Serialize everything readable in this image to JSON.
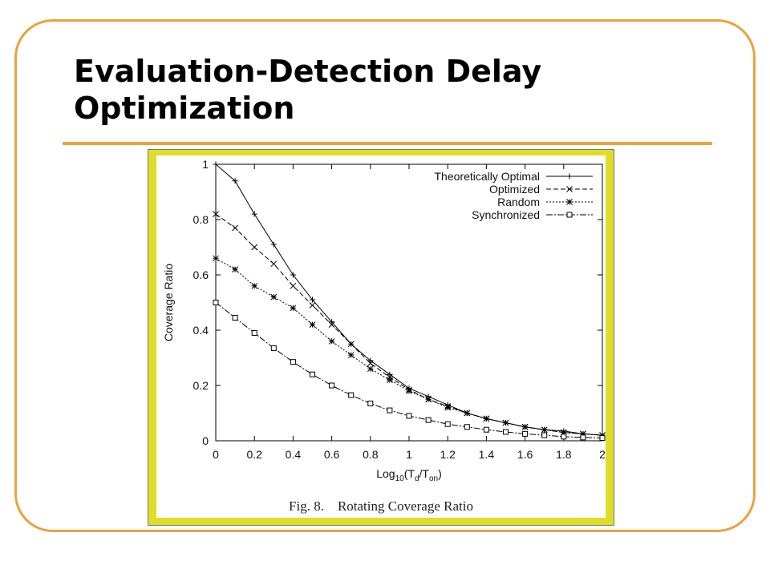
{
  "slide": {
    "title_line1": "Evaluation-Detection Delay",
    "title_line2": "Optimization",
    "frame_color": "#e8a33c",
    "figure_bg_color": "#dede2a"
  },
  "figure": {
    "caption_label": "Fig. 8.",
    "caption_text": "Rotating Coverage Ratio"
  },
  "chart_data": {
    "type": "line",
    "title": "",
    "xlabel": "Log10(Td/Ton)",
    "ylabel": "Coverage Ratio",
    "xlim": [
      0,
      2
    ],
    "ylim": [
      0,
      1
    ],
    "xticks": [
      0,
      0.2,
      0.4,
      0.6,
      0.8,
      1,
      1.2,
      1.4,
      1.6,
      1.8,
      2
    ],
    "xtick_labels": [
      "0",
      "0.2",
      "0.4",
      "0.6",
      "0.8",
      "1",
      "1.2",
      "1.4",
      "1.6",
      "1.8",
      "2"
    ],
    "yticks": [
      0,
      0.2,
      0.4,
      0.6,
      0.8,
      1
    ],
    "ytick_labels": [
      "0",
      "0.2",
      "0.4",
      "0.6",
      "0.8",
      "1"
    ],
    "grid": false,
    "legend_position": "top-right",
    "x": [
      0,
      0.1,
      0.2,
      0.3,
      0.4,
      0.5,
      0.6,
      0.7,
      0.8,
      0.9,
      1.0,
      1.1,
      1.2,
      1.3,
      1.4,
      1.5,
      1.6,
      1.7,
      1.8,
      1.9,
      2.0
    ],
    "series": [
      {
        "name": "Theoretically Optimal",
        "marker": "plus",
        "dash": "",
        "values": [
          1.0,
          0.94,
          0.82,
          0.71,
          0.6,
          0.51,
          0.43,
          0.35,
          0.29,
          0.24,
          0.19,
          0.16,
          0.13,
          0.1,
          0.08,
          0.065,
          0.05,
          0.04,
          0.035,
          0.025,
          0.02
        ]
      },
      {
        "name": "Optimized",
        "marker": "x",
        "dash": "6,3",
        "values": [
          0.82,
          0.77,
          0.7,
          0.64,
          0.56,
          0.49,
          0.42,
          0.35,
          0.28,
          0.23,
          0.185,
          0.15,
          0.125,
          0.1,
          0.08,
          0.065,
          0.05,
          0.04,
          0.03,
          0.025,
          0.02
        ]
      },
      {
        "name": "Random",
        "marker": "star",
        "dash": "2,2",
        "values": [
          0.66,
          0.62,
          0.56,
          0.52,
          0.48,
          0.42,
          0.36,
          0.31,
          0.26,
          0.22,
          0.18,
          0.15,
          0.12,
          0.1,
          0.08,
          0.065,
          0.05,
          0.04,
          0.03,
          0.025,
          0.02
        ]
      },
      {
        "name": "Synchronized",
        "marker": "square",
        "dash": "8,2,2,2",
        "values": [
          0.5,
          0.445,
          0.39,
          0.335,
          0.285,
          0.24,
          0.2,
          0.165,
          0.135,
          0.11,
          0.09,
          0.075,
          0.06,
          0.05,
          0.04,
          0.032,
          0.025,
          0.02,
          0.015,
          0.012,
          0.01
        ]
      }
    ]
  }
}
